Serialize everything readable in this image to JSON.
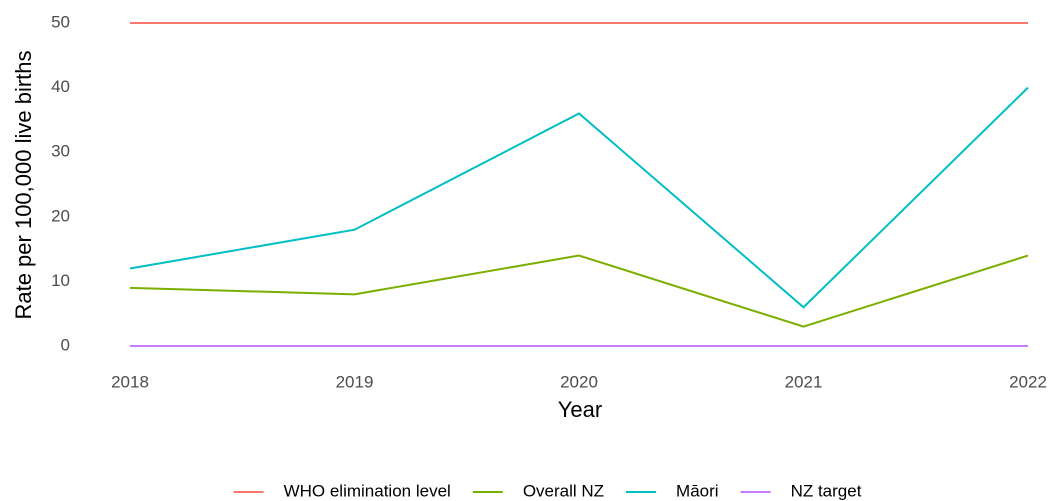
{
  "chart_data": {
    "type": "line",
    "x_label": "Year",
    "y_label": "Rate per 100,000 live births",
    "x": [
      2018,
      2019,
      2020,
      2021,
      2022
    ],
    "series": [
      {
        "name": "WHO elimination level",
        "color": "#f8766d",
        "values": [
          50,
          50,
          50,
          50,
          50
        ]
      },
      {
        "name": "Overall NZ",
        "color": "#7cae00",
        "values": [
          9,
          8,
          14,
          3,
          14
        ]
      },
      {
        "name": "Māori",
        "color": "#00bfc4",
        "values": [
          12,
          18,
          36,
          6,
          40
        ]
      },
      {
        "name": "NZ target",
        "color": "#c77cff",
        "values": [
          0,
          0,
          0,
          0,
          0
        ]
      }
    ],
    "xlim": [
      2018,
      2022
    ],
    "xticks": [
      2018,
      2019,
      2020,
      2021,
      2022
    ],
    "ylim": [
      0,
      50
    ],
    "yticks": [
      0,
      10,
      20,
      30,
      40,
      50
    ],
    "grid": false,
    "legend": "bottom"
  }
}
